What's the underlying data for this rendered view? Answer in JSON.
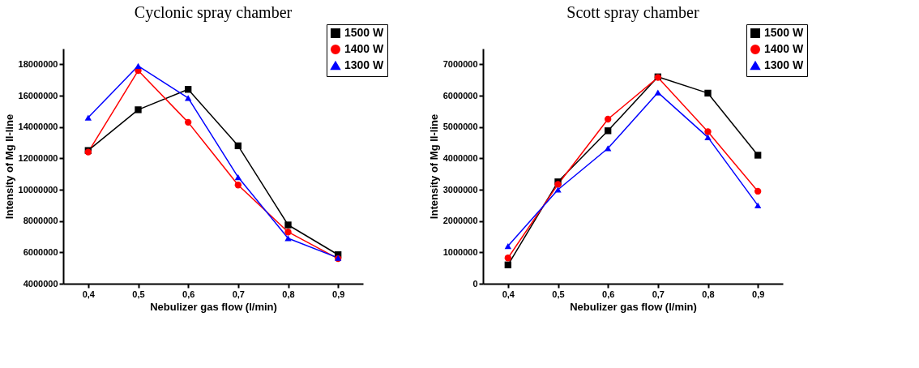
{
  "chart_data": [
    {
      "type": "line",
      "title": "Cyclonic spray chamber",
      "xlabel": "Nebulizer gas flow (l/min)",
      "ylabel": "Intensity of Mg II-line",
      "x": [
        0.4,
        0.5,
        0.6,
        0.7,
        0.8,
        0.9
      ],
      "series": [
        {
          "name": "1500 W",
          "color": "#000000",
          "marker": "square",
          "values": [
            12500000,
            15100000,
            16400000,
            12800000,
            7750000,
            5850000
          ]
        },
        {
          "name": "1400 W",
          "color": "#ff0000",
          "marker": "circle",
          "values": [
            12400000,
            17600000,
            14300000,
            10300000,
            7300000,
            5600000
          ]
        },
        {
          "name": "1300 W",
          "color": "#0000ff",
          "marker": "triangle",
          "values": [
            14600000,
            17900000,
            15850000,
            10800000,
            6900000,
            5650000
          ]
        }
      ],
      "xlim": [
        0.35,
        0.95
      ],
      "xticks": [
        {
          "value": 0.4,
          "label": "0,4"
        },
        {
          "value": 0.5,
          "label": "0,5"
        },
        {
          "value": 0.6,
          "label": "0,6"
        },
        {
          "value": 0.7,
          "label": "0,7"
        },
        {
          "value": 0.8,
          "label": "0,8"
        },
        {
          "value": 0.9,
          "label": "0,9"
        }
      ],
      "ylim": [
        4000000,
        19000000
      ],
      "yticks": [
        4000000,
        6000000,
        8000000,
        10000000,
        12000000,
        14000000,
        16000000,
        18000000
      ],
      "grid": false,
      "legend": "top right",
      "line_style": "solid"
    },
    {
      "type": "line",
      "title": "Scott spray chamber",
      "xlabel": "Nebulizer gas flow (l/min)",
      "ylabel": "Intensity of Mg II-line",
      "x": [
        0.4,
        0.5,
        0.6,
        0.7,
        0.8,
        0.9
      ],
      "series": [
        {
          "name": "1500 W",
          "color": "#000000",
          "marker": "square",
          "values": [
            600000,
            3250000,
            4880000,
            6600000,
            6080000,
            4100000
          ]
        },
        {
          "name": "1400 W",
          "color": "#ff0000",
          "marker": "circle",
          "values": [
            820000,
            3170000,
            5250000,
            6580000,
            4850000,
            2950000
          ]
        },
        {
          "name": "1300 W",
          "color": "#0000ff",
          "marker": "triangle",
          "values": [
            1200000,
            3000000,
            4320000,
            6100000,
            4670000,
            2500000
          ]
        }
      ],
      "xlim": [
        0.35,
        0.95
      ],
      "xticks": [
        {
          "value": 0.4,
          "label": "0,4"
        },
        {
          "value": 0.5,
          "label": "0,5"
        },
        {
          "value": 0.6,
          "label": "0,6"
        },
        {
          "value": 0.7,
          "label": "0,7"
        },
        {
          "value": 0.8,
          "label": "0,8"
        },
        {
          "value": 0.9,
          "label": "0,9"
        }
      ],
      "ylim": [
        0,
        7500000
      ],
      "yticks": [
        0,
        1000000,
        2000000,
        3000000,
        4000000,
        5000000,
        6000000,
        7000000
      ],
      "grid": false,
      "legend": "top right",
      "line_style": "solid"
    }
  ]
}
